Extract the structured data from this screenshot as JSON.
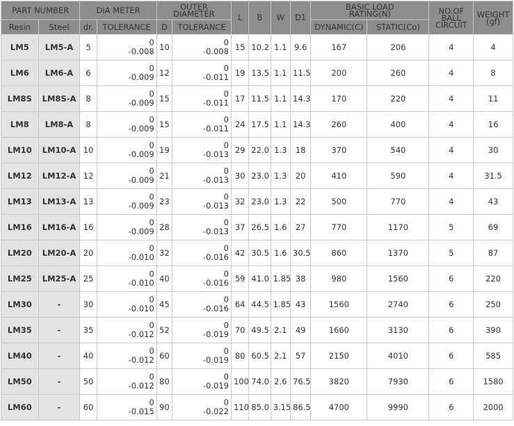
{
  "header": {
    "part_number": "PART NUMBER",
    "dia_meter": "DIA METER",
    "outer_diameter_1": "OUTER",
    "outer_diameter_2": "DIAMETER",
    "l": "L",
    "b": "B",
    "w": "W",
    "d1": "D1",
    "basic_load_1": "BASIC LOAD",
    "basic_load_2": "RATING(N)",
    "ball_circuit_1": "NO.OF",
    "ball_circuit_2": "BALL",
    "ball_circuit_3": "CIRCUIT",
    "weight_1": "WEIGHT",
    "weight_2": "(gf)",
    "resin": "Resin",
    "steel": "Steel",
    "dr": "dr.",
    "tolerance": "TOLERANCE",
    "d": "D",
    "dynamic": "DYNAMIC(C)",
    "static": "STATIC(Co)"
  },
  "rows": [
    {
      "resin": "LM5",
      "steel": "LM5-A",
      "dr": "5",
      "dr_tol_upper": "0",
      "dr_tol_lower": "-0.008",
      "d": "10",
      "d_tol_upper": "0",
      "d_tol_lower": "-0.008",
      "l": "15",
      "b": "10.2",
      "w": "1.1",
      "d1": "9.6",
      "dynamic": "167",
      "static": "206",
      "circuits": "4",
      "weight": "4"
    },
    {
      "resin": "LM6",
      "steel": "LM6-A",
      "dr": "6",
      "dr_tol_upper": "0",
      "dr_tol_lower": "-0.009",
      "d": "12",
      "d_tol_upper": "0",
      "d_tol_lower": "-0.011",
      "l": "19",
      "b": "13.5",
      "w": "1.1",
      "d1": "11.5",
      "dynamic": "200",
      "static": "260",
      "circuits": "4",
      "weight": "8"
    },
    {
      "resin": "LM8S",
      "steel": "LM8S-A",
      "dr": "8",
      "dr_tol_upper": "0",
      "dr_tol_lower": "-0.009",
      "d": "15",
      "d_tol_upper": "0",
      "d_tol_lower": "-0.011",
      "l": "17",
      "b": "11.5",
      "w": "1.1",
      "d1": "14.3",
      "dynamic": "170",
      "static": "220",
      "circuits": "4",
      "weight": "11"
    },
    {
      "resin": "LM8",
      "steel": "LM8-A",
      "dr": "8",
      "dr_tol_upper": "0",
      "dr_tol_lower": "-0.009",
      "d": "15",
      "d_tol_upper": "0",
      "d_tol_lower": "-0.011",
      "l": "24",
      "b": "17.5",
      "w": "1.1",
      "d1": "14.3",
      "dynamic": "260",
      "static": "400",
      "circuits": "4",
      "weight": "16"
    },
    {
      "resin": "LM10",
      "steel": "LM10-A",
      "dr": "10",
      "dr_tol_upper": "0",
      "dr_tol_lower": "-0.009",
      "d": "19",
      "d_tol_upper": "0",
      "d_tol_lower": "-0.013",
      "l": "29",
      "b": "22.0",
      "w": "1.3",
      "d1": "18",
      "dynamic": "370",
      "static": "540",
      "circuits": "4",
      "weight": "30"
    },
    {
      "resin": "LM12",
      "steel": "LM12-A",
      "dr": "12",
      "dr_tol_upper": "0",
      "dr_tol_lower": "-0.009",
      "d": "21",
      "d_tol_upper": "0",
      "d_tol_lower": "-0.013",
      "l": "30",
      "b": "23.0",
      "w": "1.3",
      "d1": "20",
      "dynamic": "410",
      "static": "590",
      "circuits": "4",
      "weight": "31.5"
    },
    {
      "resin": "LM13",
      "steel": "LM13-A",
      "dr": "13",
      "dr_tol_upper": "0",
      "dr_tol_lower": "-0.009",
      "d": "23",
      "d_tol_upper": "0",
      "d_tol_lower": "-0.013",
      "l": "32",
      "b": "23.0",
      "w": "1.3",
      "d1": "22",
      "dynamic": "500",
      "static": "770",
      "circuits": "4",
      "weight": "43"
    },
    {
      "resin": "LM16",
      "steel": "LM16-A",
      "dr": "16",
      "dr_tol_upper": "0",
      "dr_tol_lower": "-0.009",
      "d": "28",
      "d_tol_upper": "0",
      "d_tol_lower": "-0.013",
      "l": "37",
      "b": "26.5",
      "w": "1.6",
      "d1": "27",
      "dynamic": "770",
      "static": "1170",
      "circuits": "5",
      "weight": "69"
    },
    {
      "resin": "LM20",
      "steel": "LM20-A",
      "dr": "20",
      "dr_tol_upper": "0",
      "dr_tol_lower": "-0.010",
      "d": "32",
      "d_tol_upper": "0",
      "d_tol_lower": "-0.016",
      "l": "42",
      "b": "30.5",
      "w": "1.6",
      "d1": "30.5",
      "dynamic": "860",
      "static": "1370",
      "circuits": "5",
      "weight": "87"
    },
    {
      "resin": "LM25",
      "steel": "LM25-A",
      "dr": "25",
      "dr_tol_upper": "0",
      "dr_tol_lower": "-0.010",
      "d": "40",
      "d_tol_upper": "0",
      "d_tol_lower": "-0.016",
      "l": "59",
      "b": "41.0",
      "w": "1.85",
      "d1": "38",
      "dynamic": "980",
      "static": "1560",
      "circuits": "6",
      "weight": "220"
    },
    {
      "resin": "LM30",
      "steel": "-",
      "dr": "30",
      "dr_tol_upper": "0",
      "dr_tol_lower": "-0.010",
      "d": "45",
      "d_tol_upper": "0",
      "d_tol_lower": "-0.016",
      "l": "64",
      "b": "44.5",
      "w": "1.85",
      "d1": "43",
      "dynamic": "1560",
      "static": "2740",
      "circuits": "6",
      "weight": "250"
    },
    {
      "resin": "LM35",
      "steel": "-",
      "dr": "35",
      "dr_tol_upper": "0",
      "dr_tol_lower": "-0.012",
      "d": "52",
      "d_tol_upper": "0",
      "d_tol_lower": "-0.019",
      "l": "70",
      "b": "49.5",
      "w": "2.1",
      "d1": "49",
      "dynamic": "1660",
      "static": "3130",
      "circuits": "6",
      "weight": "390"
    },
    {
      "resin": "LM40",
      "steel": "-",
      "dr": "40",
      "dr_tol_upper": "0",
      "dr_tol_lower": "-0.012",
      "d": "60",
      "d_tol_upper": "0",
      "d_tol_lower": "-0.019",
      "l": "80",
      "b": "60.5",
      "w": "2.1",
      "d1": "57",
      "dynamic": "2150",
      "static": "4010",
      "circuits": "6",
      "weight": "585"
    },
    {
      "resin": "LM50",
      "steel": "-",
      "dr": "50",
      "dr_tol_upper": "0",
      "dr_tol_lower": "-0.012",
      "d": "80",
      "d_tol_upper": "0",
      "d_tol_lower": "-0.019",
      "l": "100",
      "b": "74.0",
      "w": "2.6",
      "d1": "76.5",
      "dynamic": "3820",
      "static": "7930",
      "circuits": "6",
      "weight": "1580"
    },
    {
      "resin": "LM60",
      "steel": "-",
      "dr": "60",
      "dr_tol_upper": "0",
      "dr_tol_lower": "-0.015",
      "d": "90",
      "d_tol_upper": "0",
      "d_tol_lower": "-0.022",
      "l": "110",
      "b": "85.0",
      "w": "3.15",
      "d1": "86.5",
      "dynamic": "4700",
      "static": "9990",
      "circuits": "6",
      "weight": "2000"
    }
  ]
}
